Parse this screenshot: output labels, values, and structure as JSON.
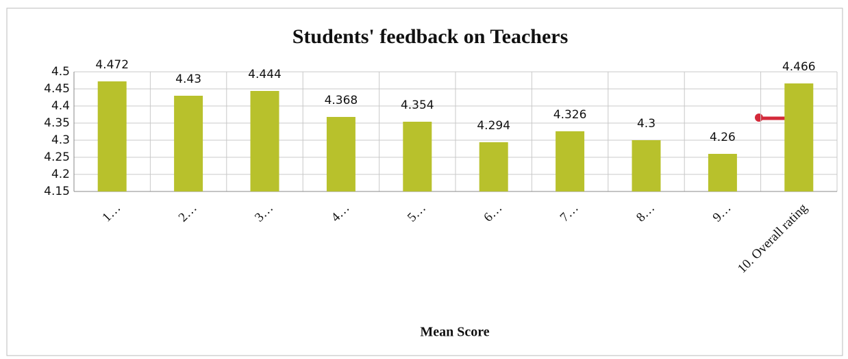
{
  "chart_data": {
    "type": "bar",
    "title": "Students' feedback on Teachers",
    "x_label": "Mean Score",
    "categories": [
      "1…",
      "2…",
      "3…",
      "4…",
      "5…",
      "6…",
      "7…",
      "8…",
      "9…",
      "10. Overall rating"
    ],
    "values": [
      4.472,
      4.43,
      4.444,
      4.368,
      4.354,
      4.294,
      4.326,
      4.3,
      4.26,
      4.466
    ],
    "color": "#b8c12c",
    "ylim": [
      4.15,
      4.5
    ],
    "yticks": [
      4.15,
      4.2,
      4.25,
      4.3,
      4.35,
      4.4,
      4.45,
      4.5
    ],
    "grid": true
  }
}
